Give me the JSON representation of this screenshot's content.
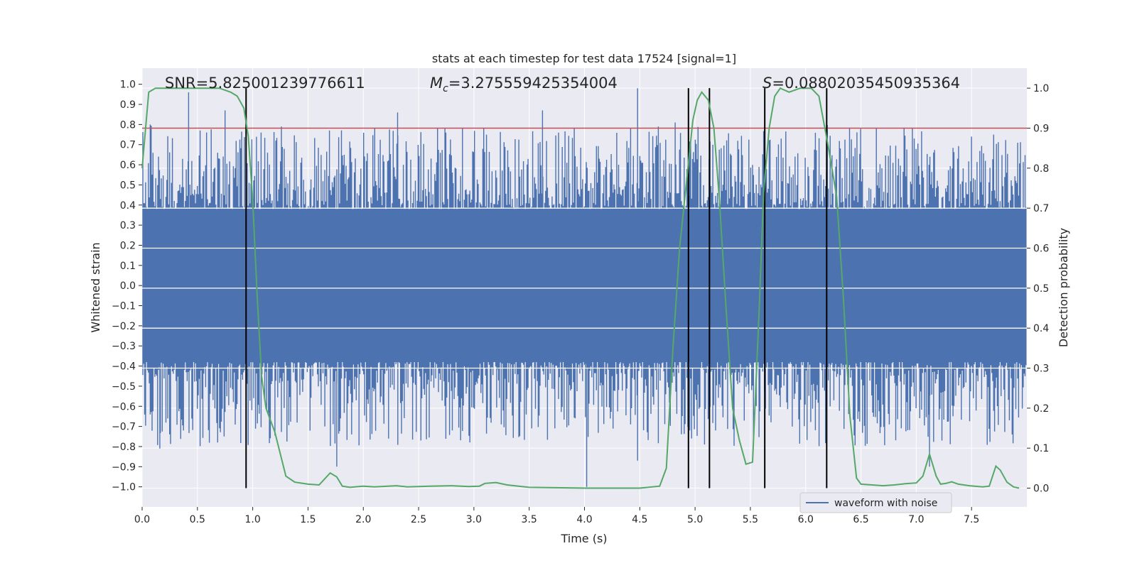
{
  "chart_data": {
    "type": "line",
    "title": "stats at each timestep for test data 17524 [signal=1]",
    "xlabel": "Time (s)",
    "ylabel_left": "Whitened strain",
    "ylabel_right": "Detection probability",
    "xlim": [
      0.0,
      8.0
    ],
    "ylim_left": [
      -1.1,
      1.08
    ],
    "ylim_right": [
      -0.047,
      1.05
    ],
    "x_ticks": [
      "0.0",
      "0.5",
      "1.0",
      "1.5",
      "2.0",
      "2.5",
      "3.0",
      "3.5",
      "4.0",
      "4.5",
      "5.0",
      "5.5",
      "6.0",
      "6.5",
      "7.0",
      "7.5"
    ],
    "y_left_ticks": [
      "1.0",
      "0.9",
      "0.8",
      "0.7",
      "0.6",
      "0.5",
      "0.4",
      "0.3",
      "0.2",
      "0.1",
      "0.0",
      "-0.1",
      "-0.2",
      "-0.3",
      "-0.4",
      "-0.5",
      "-0.6",
      "-0.7",
      "-0.8",
      "-0.9",
      "-1.0"
    ],
    "y_right_ticks": [
      "1.0",
      "0.9",
      "0.8",
      "0.7",
      "0.6",
      "0.5",
      "0.4",
      "0.3",
      "0.2",
      "0.1",
      "0.0"
    ],
    "annotations": {
      "snr": "SNR=5.825001239776611",
      "mc_symbol": "M",
      "mc_sub": "c",
      "mc_value": "=3.275559425354004",
      "s_symbol": "S",
      "s_value": "=0.08802035450935364"
    },
    "legend": {
      "entries": [
        "waveform with noise"
      ],
      "placement": "lower-right"
    },
    "threshold": {
      "value": 0.9,
      "axis": "right",
      "color": "#c44e52"
    },
    "vertical_lines": [
      0.94,
      4.94,
      5.13,
      5.63,
      6.19
    ],
    "series": [
      {
        "name": "waveform with noise",
        "color": "#4c72b0",
        "axis": "left",
        "band_extent": 0.38,
        "notable_peaks": [
          {
            "x": 0.42,
            "y": 0.96
          },
          {
            "x": 0.75,
            "y": 0.87
          },
          {
            "x": 2.31,
            "y": 0.86
          },
          {
            "x": 3.62,
            "y": 0.87
          },
          {
            "x": 4.48,
            "y": 0.98
          },
          {
            "x": 4.82,
            "y": 0.81
          },
          {
            "x": 4.02,
            "y": -1.0
          },
          {
            "x": 0.16,
            "y": -0.81
          },
          {
            "x": 1.76,
            "y": -0.9
          },
          {
            "x": 4.48,
            "y": -0.87
          },
          {
            "x": 7.12,
            "y": -0.9
          }
        ]
      },
      {
        "name": "detection probability",
        "color": "#55a868",
        "axis": "right",
        "x": [
          0.0,
          0.06,
          0.12,
          0.18,
          0.3,
          0.5,
          0.7,
          0.8,
          0.86,
          0.92,
          0.96,
          1.0,
          1.04,
          1.08,
          1.12,
          1.2,
          1.3,
          1.38,
          1.5,
          1.6,
          1.64,
          1.7,
          1.76,
          1.81,
          1.88,
          2.0,
          2.1,
          2.3,
          2.4,
          2.6,
          2.8,
          2.95,
          3.05,
          3.1,
          3.2,
          3.3,
          3.5,
          3.8,
          4.0,
          4.5,
          4.68,
          4.74,
          4.8,
          4.86,
          4.92,
          4.98,
          5.02,
          5.06,
          5.12,
          5.17,
          5.22,
          5.28,
          5.34,
          5.4,
          5.46,
          5.52,
          5.58,
          5.62,
          5.67,
          5.72,
          5.77,
          5.85,
          5.95,
          6.05,
          6.12,
          6.2,
          6.28,
          6.34,
          6.4,
          6.46,
          6.5,
          6.6,
          6.7,
          6.8,
          6.9,
          7.0,
          7.06,
          7.12,
          7.18,
          7.22,
          7.27,
          7.32,
          7.38,
          7.48,
          7.6,
          7.66,
          7.72,
          7.76,
          7.82,
          7.88,
          7.93
        ],
        "values": [
          0.8,
          0.99,
          1.0,
          1.0,
          1.0,
          1.0,
          1.0,
          0.99,
          0.98,
          0.95,
          0.88,
          0.72,
          0.48,
          0.28,
          0.2,
          0.14,
          0.03,
          0.015,
          0.01,
          0.008,
          0.02,
          0.038,
          0.028,
          0.005,
          0.002,
          0.005,
          0.003,
          0.006,
          0.003,
          0.005,
          0.006,
          0.004,
          0.005,
          0.012,
          0.014,
          0.008,
          0.002,
          0.001,
          0.0,
          0.0,
          0.005,
          0.05,
          0.35,
          0.6,
          0.76,
          0.92,
          0.97,
          0.99,
          0.97,
          0.9,
          0.72,
          0.45,
          0.2,
          0.12,
          0.06,
          0.065,
          0.45,
          0.74,
          0.9,
          0.98,
          1.0,
          0.99,
          1.0,
          1.0,
          0.98,
          0.86,
          0.73,
          0.48,
          0.18,
          0.025,
          0.01,
          0.008,
          0.006,
          0.008,
          0.011,
          0.013,
          0.03,
          0.085,
          0.03,
          0.01,
          0.012,
          0.016,
          0.01,
          0.006,
          0.003,
          0.005,
          0.055,
          0.045,
          0.015,
          0.003,
          0.0
        ]
      }
    ]
  }
}
